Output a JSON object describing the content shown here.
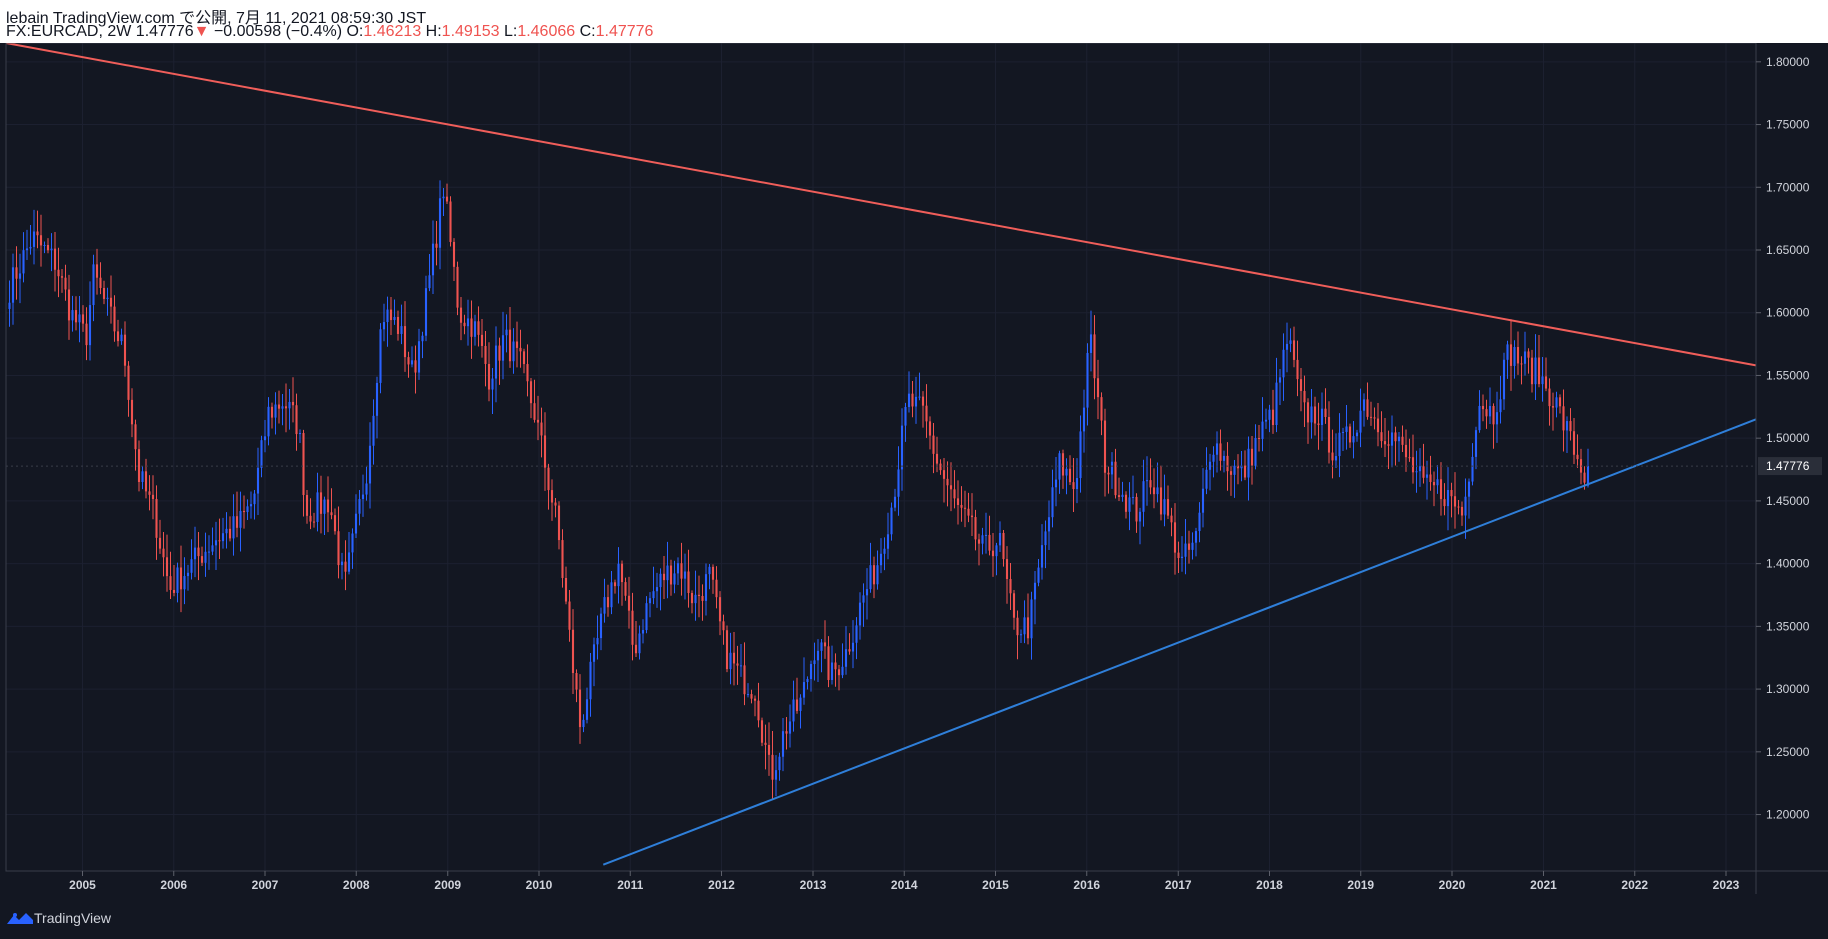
{
  "header": {
    "line1": "lebain TradingView.com で公開, 7月 11, 2021 08:59:30 JST",
    "symbol": "FX:EURCAD, 2W",
    "last": "1.47776",
    "change_arrow": "▼",
    "change": "−0.00598 (−0.4%)",
    "o_label": "O:",
    "o_value": "1.46213",
    "h_label": "H:",
    "h_value": "1.49153",
    "l_label": "L:",
    "l_value": "1.46066",
    "c_label": "C:",
    "c_value": "1.47776"
  },
  "footer": {
    "brand": "TradingView",
    "logo_icon": "tradingview-logo-icon"
  },
  "colors": {
    "background": "#131722",
    "up": "#2962ff",
    "down": "#ef5350",
    "upper_trendline": "#f05e5a",
    "lower_trendline": "#2f7fd9"
  },
  "chart_data": {
    "type": "candlestick",
    "symbol": "FX:EURCAD",
    "interval": "2W",
    "y_ticks": [
      "1.80000",
      "1.75000",
      "1.70000",
      "1.65000",
      "1.60000",
      "1.55000",
      "1.50000",
      "1.45000",
      "1.40000",
      "1.35000",
      "1.30000",
      "1.25000",
      "1.20000"
    ],
    "ylim": [
      1.155,
      1.815
    ],
    "x_ticks": [
      "2005",
      "2006",
      "2007",
      "2008",
      "2009",
      "2010",
      "2011",
      "2012",
      "2013",
      "2014",
      "2015",
      "2016",
      "2017",
      "2018",
      "2019",
      "2020",
      "2021",
      "2022",
      "2023"
    ],
    "xlim": [
      "2004-03-01",
      "2023-05-01"
    ],
    "last_price_label": "1.47776",
    "anchors": [
      [
        "2004-03",
        1.62
      ],
      [
        "2004-06",
        1.66
      ],
      [
        "2004-09",
        1.64
      ],
      [
        "2004-11",
        1.6
      ],
      [
        "2005-01",
        1.58
      ],
      [
        "2005-02",
        1.63
      ],
      [
        "2005-04",
        1.6
      ],
      [
        "2005-06",
        1.57
      ],
      [
        "2005-08",
        1.47
      ],
      [
        "2005-10",
        1.44
      ],
      [
        "2005-12",
        1.38
      ],
      [
        "2006-03",
        1.4
      ],
      [
        "2006-06",
        1.42
      ],
      [
        "2006-09",
        1.43
      ],
      [
        "2006-11",
        1.45
      ],
      [
        "2007-01",
        1.52
      ],
      [
        "2007-03",
        1.53
      ],
      [
        "2007-05",
        1.51
      ],
      [
        "2007-06",
        1.44
      ],
      [
        "2007-09",
        1.45
      ],
      [
        "2007-11",
        1.38
      ],
      [
        "2008-02",
        1.48
      ],
      [
        "2008-04",
        1.6
      ],
      [
        "2008-06",
        1.59
      ],
      [
        "2008-08",
        1.55
      ],
      [
        "2008-10",
        1.62
      ],
      [
        "2008-12",
        1.7
      ],
      [
        "2009-02",
        1.6
      ],
      [
        "2009-04",
        1.59
      ],
      [
        "2009-06",
        1.55
      ],
      [
        "2009-08",
        1.58
      ],
      [
        "2009-10",
        1.56
      ],
      [
        "2009-12",
        1.52
      ],
      [
        "2010-03",
        1.43
      ],
      [
        "2010-05",
        1.32
      ],
      [
        "2010-06",
        1.27
      ],
      [
        "2010-09",
        1.36
      ],
      [
        "2010-11",
        1.4
      ],
      [
        "2011-01",
        1.33
      ],
      [
        "2011-03",
        1.37
      ],
      [
        "2011-05",
        1.39
      ],
      [
        "2011-07",
        1.4
      ],
      [
        "2011-09",
        1.37
      ],
      [
        "2011-11",
        1.39
      ],
      [
        "2012-01",
        1.33
      ],
      [
        "2012-03",
        1.31
      ],
      [
        "2012-05",
        1.3
      ],
      [
        "2012-07",
        1.23
      ],
      [
        "2012-09",
        1.27
      ],
      [
        "2012-11",
        1.29
      ],
      [
        "2013-01",
        1.34
      ],
      [
        "2013-03",
        1.31
      ],
      [
        "2013-05",
        1.33
      ],
      [
        "2013-07",
        1.37
      ],
      [
        "2013-09",
        1.4
      ],
      [
        "2013-11",
        1.45
      ],
      [
        "2014-01",
        1.53
      ],
      [
        "2014-03",
        1.52
      ],
      [
        "2014-05",
        1.48
      ],
      [
        "2014-07",
        1.45
      ],
      [
        "2014-09",
        1.43
      ],
      [
        "2014-11",
        1.41
      ],
      [
        "2015-01",
        1.42
      ],
      [
        "2015-03",
        1.35
      ],
      [
        "2015-05",
        1.35
      ],
      [
        "2015-07",
        1.42
      ],
      [
        "2015-09",
        1.48
      ],
      [
        "2015-11",
        1.46
      ],
      [
        "2016-01",
        1.58
      ],
      [
        "2016-03",
        1.48
      ],
      [
        "2016-05",
        1.46
      ],
      [
        "2016-07",
        1.44
      ],
      [
        "2016-09",
        1.47
      ],
      [
        "2016-11",
        1.44
      ],
      [
        "2017-01",
        1.4
      ],
      [
        "2017-03",
        1.42
      ],
      [
        "2017-05",
        1.5
      ],
      [
        "2017-07",
        1.48
      ],
      [
        "2017-09",
        1.47
      ],
      [
        "2017-11",
        1.5
      ],
      [
        "2018-01",
        1.52
      ],
      [
        "2018-03",
        1.58
      ],
      [
        "2018-05",
        1.52
      ],
      [
        "2018-07",
        1.52
      ],
      [
        "2018-09",
        1.49
      ],
      [
        "2018-11",
        1.5
      ],
      [
        "2019-01",
        1.53
      ],
      [
        "2019-03",
        1.51
      ],
      [
        "2019-05",
        1.5
      ],
      [
        "2019-07",
        1.48
      ],
      [
        "2019-09",
        1.46
      ],
      [
        "2019-11",
        1.46
      ],
      [
        "2020-02",
        1.44
      ],
      [
        "2020-04",
        1.53
      ],
      [
        "2020-06",
        1.52
      ],
      [
        "2020-08",
        1.57
      ],
      [
        "2020-10",
        1.56
      ],
      [
        "2020-12",
        1.55
      ],
      [
        "2021-02",
        1.53
      ],
      [
        "2021-04",
        1.5
      ],
      [
        "2021-06",
        1.47
      ],
      [
        "2021-07",
        1.478
      ]
    ],
    "upper_trendline": [
      [
        "2004-03-01",
        1.815
      ],
      [
        "2023-05-01",
        1.558
      ]
    ],
    "lower_trendline": [
      [
        "2010-09-15",
        1.16
      ],
      [
        "2023-05-01",
        1.515
      ]
    ]
  }
}
